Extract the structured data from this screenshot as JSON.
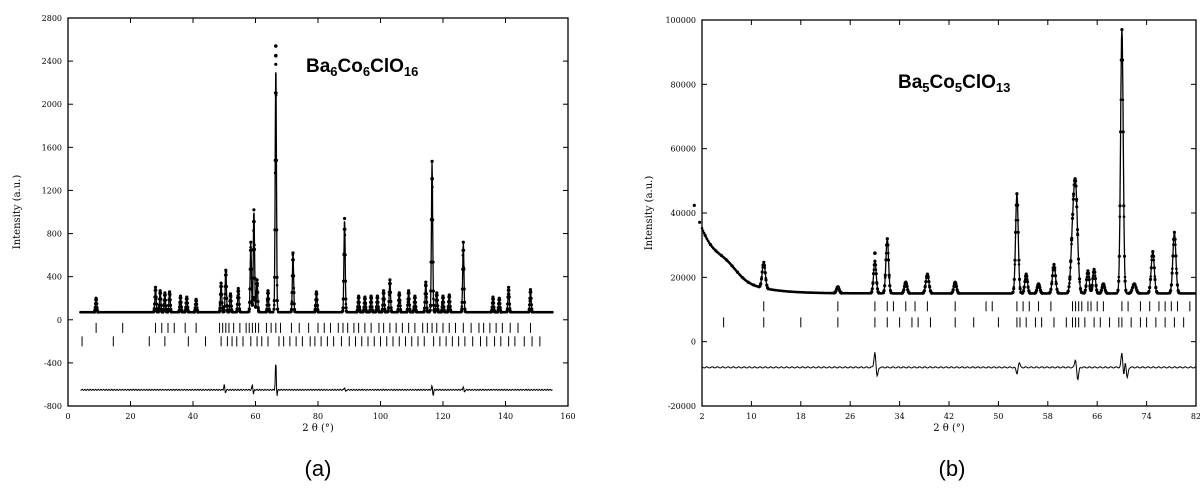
{
  "chart_data": [
    {
      "type": "line",
      "panel_label": "(a)",
      "formula": [
        "Ba",
        "6",
        "Co",
        "6",
        "ClO",
        "16"
      ],
      "xlabel": "2 θ (°)",
      "ylabel": "Intensity (a.u.)",
      "xlim": [
        0,
        160
      ],
      "ylim": [
        -800,
        2800
      ],
      "xticks": [
        "0",
        "20",
        "40",
        "60",
        "80",
        "100",
        "120",
        "140",
        "160"
      ],
      "yticks": [
        "-800",
        "-400",
        "0",
        "400",
        "800",
        "1200",
        "1600",
        "2000",
        "2400",
        "2800"
      ],
      "baseline": 70,
      "x_start": 4,
      "x_end": 155,
      "peaks": [
        [
          9,
          130
        ],
        [
          28,
          230
        ],
        [
          29.5,
          200
        ],
        [
          31,
          180
        ],
        [
          32.5,
          190
        ],
        [
          36,
          150
        ],
        [
          38,
          140
        ],
        [
          41,
          120
        ],
        [
          49,
          270
        ],
        [
          50.5,
          390
        ],
        [
          52,
          170
        ],
        [
          54.5,
          220
        ],
        [
          58.5,
          650
        ],
        [
          59.5,
          950
        ],
        [
          60.5,
          300
        ],
        [
          64,
          200
        ],
        [
          66.5,
          2300
        ],
        [
          72,
          550
        ],
        [
          79.5,
          190
        ],
        [
          88.5,
          870
        ],
        [
          93,
          150
        ],
        [
          95,
          140
        ],
        [
          97,
          150
        ],
        [
          99,
          150
        ],
        [
          101,
          200
        ],
        [
          103,
          300
        ],
        [
          106,
          180
        ],
        [
          109,
          200
        ],
        [
          111,
          150
        ],
        [
          114.5,
          280
        ],
        [
          116.5,
          1400
        ],
        [
          118,
          180
        ],
        [
          120,
          150
        ],
        [
          122,
          160
        ],
        [
          126.5,
          650
        ],
        [
          136,
          140
        ],
        [
          138,
          130
        ],
        [
          141,
          230
        ],
        [
          148,
          210
        ]
      ],
      "marker_x": 66.5,
      "marker_y": [
        2450,
        2540
      ],
      "tick_rows": [
        {
          "y": -75,
          "x": [
            9,
            17.5,
            28,
            30,
            32,
            34,
            37.5,
            41,
            48.5,
            49.5,
            50.5,
            51.5,
            53,
            55,
            57,
            58,
            59,
            60,
            61,
            63.5,
            65,
            66.5,
            68,
            71.5,
            74,
            77,
            80,
            82,
            84,
            86.5,
            88,
            89.5,
            91.5,
            93,
            95,
            97,
            99.5,
            101,
            103,
            105,
            107,
            109,
            111,
            113.5,
            115,
            116.5,
            118,
            120,
            122,
            124,
            126.5,
            129,
            131.5,
            133,
            135,
            137,
            139,
            141.5,
            144,
            148
          ]
        },
        {
          "y": -200,
          "x": [
            4.5,
            14.5,
            26,
            31,
            38.5,
            44,
            49,
            51,
            52.5,
            54,
            56,
            58.5,
            60.5,
            62,
            64,
            67.5,
            69,
            71,
            73,
            75,
            77.5,
            79,
            81,
            83,
            85,
            87.5,
            90,
            92,
            94,
            96,
            98,
            100,
            102,
            104,
            106,
            108,
            110,
            112,
            114,
            117,
            119,
            121,
            123,
            125,
            127,
            129.5,
            132,
            134,
            136.5,
            138.5,
            141,
            143,
            146,
            148.5,
            151
          ]
        }
      ],
      "diff_baseline": -650,
      "diff_spikes": [
        [
          50,
          50,
          -30
        ],
        [
          59,
          50,
          -40
        ],
        [
          66.5,
          270,
          -60
        ],
        [
          88.5,
          25,
          -20
        ],
        [
          116.5,
          40,
          -55
        ],
        [
          126.5,
          30,
          -25
        ]
      ]
    },
    {
      "type": "line",
      "panel_label": "(b)",
      "formula": [
        "Ba",
        "5",
        "Co",
        "5",
        "ClO",
        "13"
      ],
      "xlabel": "2 θ (°)",
      "ylabel": "Intensity (a.u.)",
      "xlim": [
        2,
        82
      ],
      "ylim": [
        -20000,
        100000
      ],
      "xticks": [
        "2",
        "10",
        "18",
        "26",
        "34",
        "42",
        "50",
        "58",
        "66",
        "74",
        "82"
      ],
      "yticks": [
        "-20000",
        "0",
        "20000",
        "40000",
        "60000",
        "80000",
        "100000"
      ],
      "background": {
        "start": 35000,
        "end_value": 15000,
        "decay": 4
      },
      "x_start": 2,
      "x_end": 82,
      "peaks": [
        [
          6,
          3000,
          2.5
        ],
        [
          12,
          8000,
          0.35
        ],
        [
          24,
          2000,
          0.3
        ],
        [
          30,
          10000,
          0.3
        ],
        [
          32,
          17000,
          0.3
        ],
        [
          35,
          3500,
          0.3
        ],
        [
          38.5,
          6000,
          0.35
        ],
        [
          43,
          3500,
          0.3
        ],
        [
          53,
          31000,
          0.3
        ],
        [
          54.5,
          6000,
          0.3
        ],
        [
          56.5,
          3000,
          0.3
        ],
        [
          59,
          9000,
          0.35
        ],
        [
          62.5,
          32000,
          0.45
        ],
        [
          62,
          14000,
          0.4
        ],
        [
          64.5,
          7000,
          0.3
        ],
        [
          65.5,
          7500,
          0.3
        ],
        [
          67,
          3000,
          0.3
        ],
        [
          70,
          82000,
          0.3
        ],
        [
          72,
          3000,
          0.4
        ],
        [
          75,
          13000,
          0.35
        ],
        [
          78.5,
          19000,
          0.35
        ]
      ],
      "marker_x": 30,
      "marker_y": [
        27500
      ],
      "tick_rows": [
        {
          "y": 11000,
          "x": [
            12,
            24,
            30,
            32,
            33,
            35,
            36.5,
            38.5,
            43,
            48,
            49,
            53,
            54,
            55,
            56.5,
            58.5,
            62,
            62.5,
            63,
            63.5,
            64.5,
            65,
            66,
            67,
            70,
            71,
            73,
            74.5,
            76,
            77,
            78,
            79,
            81
          ]
        },
        {
          "y": 6000,
          "x": [
            5.5,
            12,
            18,
            24,
            30,
            32,
            34,
            36,
            37,
            39,
            43,
            46,
            50,
            53,
            53.5,
            54.5,
            56,
            57,
            59,
            61,
            62,
            62.5,
            63,
            64,
            65.5,
            66.5,
            68,
            69.5,
            70,
            71.5,
            73,
            74,
            75.5,
            77,
            78.5,
            80
          ]
        }
      ],
      "diff_baseline": -8000,
      "diff_spikes": [
        [
          30,
          5000,
          -3000
        ],
        [
          53,
          -2000,
          1500
        ],
        [
          62.5,
          2500,
          -4000
        ],
        [
          70,
          4500,
          -4000
        ],
        [
          70.5,
          3500,
          -3500
        ]
      ]
    }
  ]
}
